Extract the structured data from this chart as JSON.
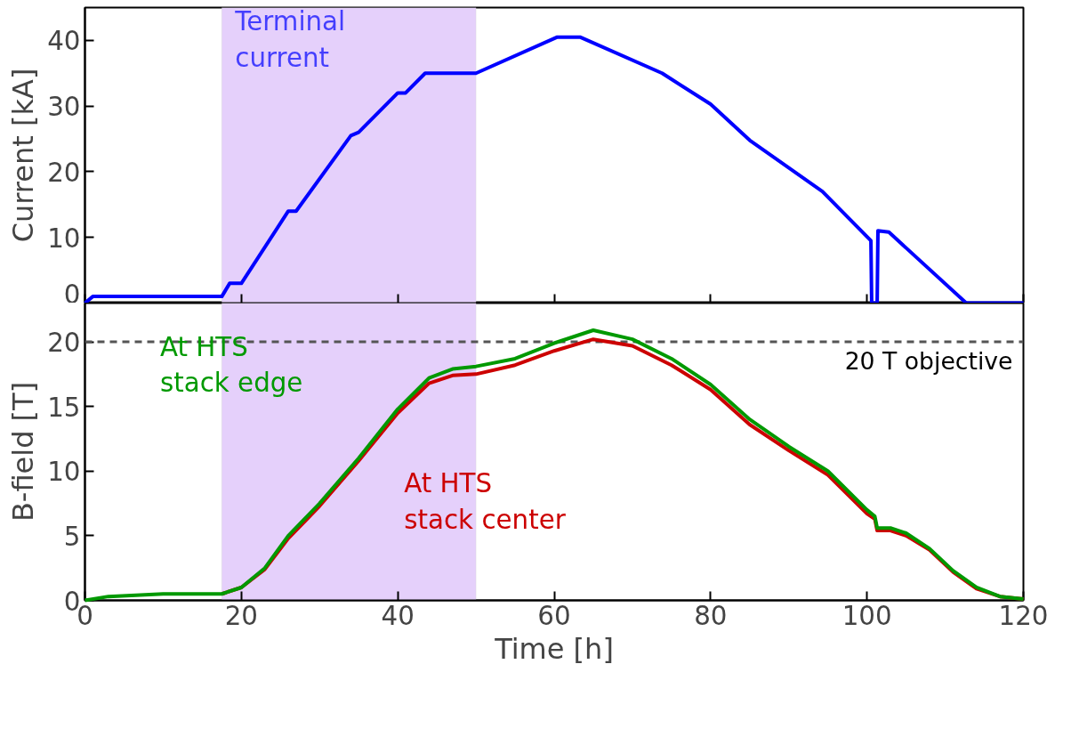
{
  "chart_data": [
    {
      "type": "line",
      "ylabel": "Current [kA]",
      "xlim": [
        0,
        120
      ],
      "xticks": [
        0,
        20,
        40,
        60,
        80,
        100,
        120
      ],
      "ylim": [
        0,
        45
      ],
      "yticks": [
        0,
        10,
        20,
        30,
        40
      ],
      "tick_labels": "y",
      "grid": false,
      "bands": [
        {
          "axis": "x",
          "from": 17.5,
          "to": 50,
          "color": "#e5d0fb"
        }
      ],
      "series": [
        {
          "name": "Terminal current",
          "color": "#0000ff",
          "x": [
            0,
            1,
            17.5,
            18.5,
            20,
            26,
            27,
            34,
            35,
            40,
            41,
            43.5,
            50,
            60.4,
            63.3,
            73.8,
            80,
            85,
            94.3,
            100.5,
            100.6,
            101.3,
            101.4,
            102.8,
            112.7,
            120
          ],
          "values": [
            0,
            1,
            1,
            3,
            3,
            14,
            14,
            25.5,
            26,
            32,
            32,
            35,
            35,
            40.5,
            40.5,
            35,
            30.3,
            24.8,
            17,
            9.5,
            0,
            0,
            11,
            10.8,
            0,
            0
          ]
        }
      ]
    },
    {
      "type": "line",
      "xlabel": "Time [h]",
      "ylabel": "B-field [T]",
      "xlim": [
        0,
        120
      ],
      "xticks": [
        0,
        20,
        40,
        60,
        80,
        100,
        120
      ],
      "ylim": [
        0,
        23
      ],
      "yticks": [
        0,
        5,
        10,
        15,
        20
      ],
      "grid": false,
      "bands": [
        {
          "axis": "x",
          "from": 17.5,
          "to": 50,
          "color": "#e5d0fb"
        }
      ],
      "ref_lines": [
        {
          "axis": "y",
          "value": 20,
          "label": "20 T objective",
          "color": "#555555",
          "line_style": "dashed"
        }
      ],
      "series": [
        {
          "name": "At HTS stack center",
          "color": "#cc0000",
          "x": [
            17.5,
            20,
            23,
            26,
            30,
            35,
            40,
            44,
            47,
            50,
            55,
            60,
            65,
            70,
            75,
            80,
            85,
            90,
            95,
            100,
            101,
            101.3,
            103,
            105,
            108,
            111,
            114,
            117,
            120
          ],
          "values": [
            0.5,
            1,
            2.4,
            4.8,
            7.3,
            10.8,
            14.5,
            16.8,
            17.4,
            17.5,
            18.2,
            19.3,
            20.2,
            19.7,
            18.2,
            16.3,
            13.6,
            11.6,
            9.7,
            6.7,
            6.3,
            5.4,
            5.4,
            5.0,
            3.9,
            2.2,
            0.9,
            0.3,
            0.1
          ]
        },
        {
          "name": "At HTS stack edge",
          "color": "#009900",
          "x": [
            0,
            3,
            10,
            17.5,
            20,
            23,
            26,
            30,
            35,
            40,
            44,
            47,
            50,
            55,
            60,
            65,
            70,
            75,
            80,
            85,
            90,
            95,
            100,
            101,
            101.3,
            103,
            105,
            108,
            111,
            114,
            117,
            120
          ],
          "values": [
            0,
            0.3,
            0.5,
            0.5,
            1,
            2.5,
            5,
            7.5,
            11,
            14.8,
            17.2,
            17.9,
            18.1,
            18.7,
            19.9,
            20.9,
            20.2,
            18.7,
            16.7,
            14,
            11.9,
            10,
            7,
            6.5,
            5.6,
            5.6,
            5.2,
            4,
            2.3,
            1,
            0.3,
            0.1
          ]
        }
      ]
    }
  ]
}
